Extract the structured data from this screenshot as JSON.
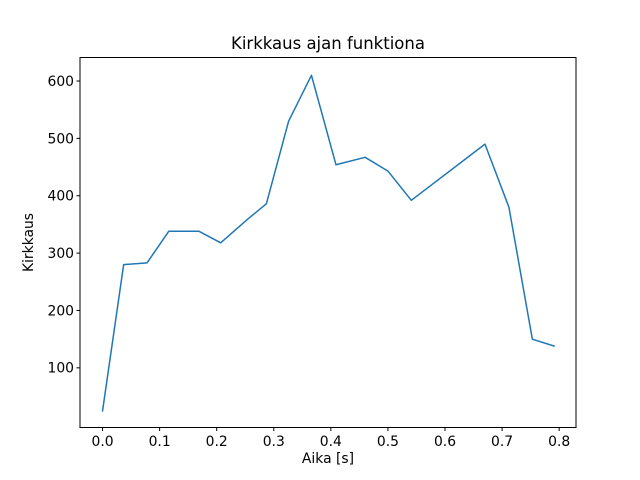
{
  "chart_data": {
    "type": "line",
    "title": "Kirkkaus ajan funktiona",
    "xlabel": "Aika [s]",
    "ylabel": "Kirkkaus",
    "x": [
      0.0,
      0.037,
      0.078,
      0.116,
      0.169,
      0.207,
      0.254,
      0.287,
      0.326,
      0.366,
      0.409,
      0.46,
      0.5,
      0.541,
      0.67,
      0.712,
      0.753,
      0.791
    ],
    "y": [
      25,
      280,
      283,
      338,
      338,
      318,
      359,
      386,
      530,
      610,
      454,
      467,
      443,
      392,
      490,
      380,
      150,
      138
    ],
    "x_tick_values": [
      0.0,
      0.1,
      0.2,
      0.3,
      0.4,
      0.5,
      0.6,
      0.7,
      0.8
    ],
    "x_tick_labels": [
      "0.0",
      "0.1",
      "0.2",
      "0.3",
      "0.4",
      "0.5",
      "0.6",
      "0.7",
      "0.8"
    ],
    "y_tick_values": [
      100,
      200,
      300,
      400,
      500,
      600
    ],
    "y_tick_labels": [
      "100",
      "200",
      "300",
      "400",
      "500",
      "600"
    ],
    "xlim": [
      -0.0395,
      0.8295
    ],
    "ylim": [
      -4,
      641
    ],
    "grid": false,
    "legend": "none",
    "line_color": "#1f77b4",
    "line_width": 1.5,
    "axis_color": "#000000",
    "background_color": "#ffffff"
  }
}
